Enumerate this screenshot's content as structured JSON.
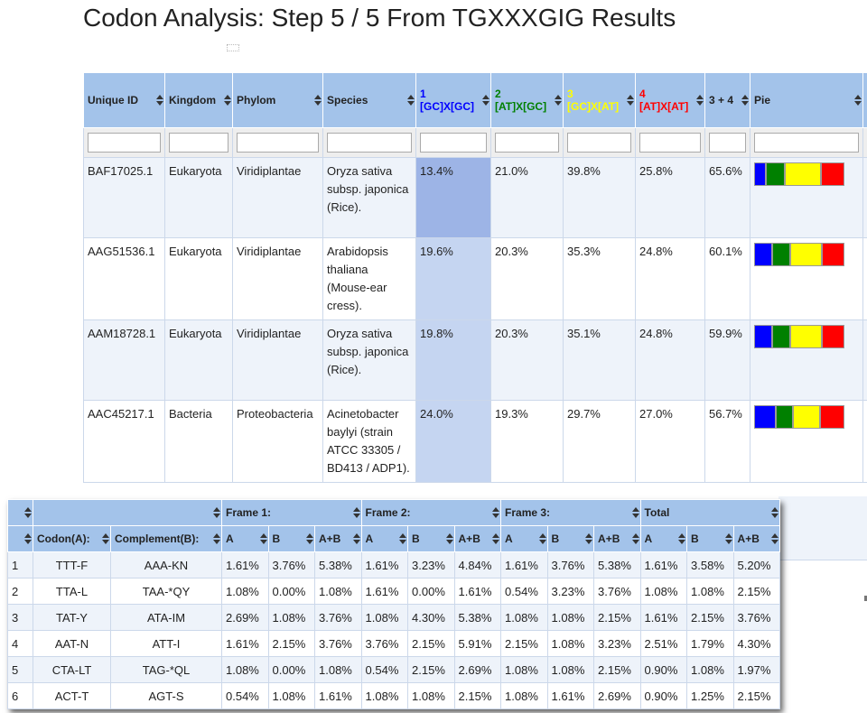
{
  "title": "Codon Analysis: Step 5 / 5 From TGXXXGIG Results",
  "main_table": {
    "columns": [
      "Unique ID",
      "Kingdom",
      "Phylom",
      "Species",
      {
        "num": "1",
        "label": "[GC]X[GC]"
      },
      {
        "num": "2",
        "label": "[AT]X[GC]"
      },
      {
        "num": "3",
        "label": "[GC]X[AT]"
      },
      {
        "num": "4",
        "label": "[AT]X[AT]"
      },
      "3 + 4",
      "Pie"
    ],
    "group_colors": [
      "#0000ff",
      "#008000",
      "#ffff00",
      "#ff0000"
    ],
    "rows": [
      [
        "BAF17025.1",
        "Eukaryota",
        "Viridiplantae",
        "Oryza sativa subsp. japonica (Rice).",
        "13.4%",
        "21.0%",
        "39.8%",
        "25.8%",
        "65.6%"
      ],
      [
        "AAG51536.1",
        "Eukaryota",
        "Viridiplantae",
        "Arabidopsis thaliana (Mouse-ear cress).",
        "19.6%",
        "20.3%",
        "35.3%",
        "24.8%",
        "60.1%"
      ],
      [
        "AAM18728.1",
        "Eukaryota",
        "Viridiplantae",
        "Oryza sativa subsp. japonica (Rice).",
        "19.8%",
        "20.3%",
        "35.1%",
        "24.8%",
        "59.9%"
      ],
      [
        "AAC45217.1",
        "Bacteria",
        "Proteobacteria",
        "Acinetobacter baylyi (strain ATCC 33305 / BD413 / ADP1).",
        "24.0%",
        "19.3%",
        "29.7%",
        "27.0%",
        "56.7%"
      ]
    ]
  },
  "codon_table": {
    "group_headers": [
      "Frame 1:",
      "Frame 2:",
      "Frame 3:",
      "Total"
    ],
    "columns": [
      "Codon(A):",
      "Complement(B):"
    ],
    "sub_columns": [
      "A",
      "B",
      "A+B"
    ],
    "rows": [
      [
        "1",
        "TTT-F",
        "AAA-KN",
        "1.61%",
        "3.76%",
        "5.38%",
        "1.61%",
        "3.23%",
        "4.84%",
        "1.61%",
        "3.76%",
        "5.38%",
        "1.61%",
        "3.58%",
        "5.20%"
      ],
      [
        "2",
        "TTA-L",
        "TAA-*QY",
        "1.08%",
        "0.00%",
        "1.08%",
        "1.61%",
        "0.00%",
        "1.61%",
        "0.54%",
        "3.23%",
        "3.76%",
        "1.08%",
        "1.08%",
        "2.15%"
      ],
      [
        "3",
        "TAT-Y",
        "ATA-IM",
        "2.69%",
        "1.08%",
        "3.76%",
        "1.08%",
        "4.30%",
        "5.38%",
        "1.08%",
        "1.08%",
        "2.15%",
        "1.61%",
        "2.15%",
        "3.76%"
      ],
      [
        "4",
        "AAT-N",
        "ATT-I",
        "1.61%",
        "2.15%",
        "3.76%",
        "3.76%",
        "2.15%",
        "5.91%",
        "2.15%",
        "1.08%",
        "3.23%",
        "2.51%",
        "1.79%",
        "4.30%"
      ],
      [
        "5",
        "CTA-LT",
        "TAG-*QL",
        "1.08%",
        "0.00%",
        "1.08%",
        "0.54%",
        "2.15%",
        "2.69%",
        "1.08%",
        "1.08%",
        "2.15%",
        "0.90%",
        "1.08%",
        "1.97%"
      ],
      [
        "6",
        "ACT-T",
        "AGT-S",
        "0.54%",
        "1.08%",
        "1.61%",
        "1.08%",
        "1.08%",
        "2.15%",
        "1.08%",
        "1.61%",
        "2.69%",
        "0.90%",
        "1.25%",
        "2.15%"
      ]
    ]
  }
}
